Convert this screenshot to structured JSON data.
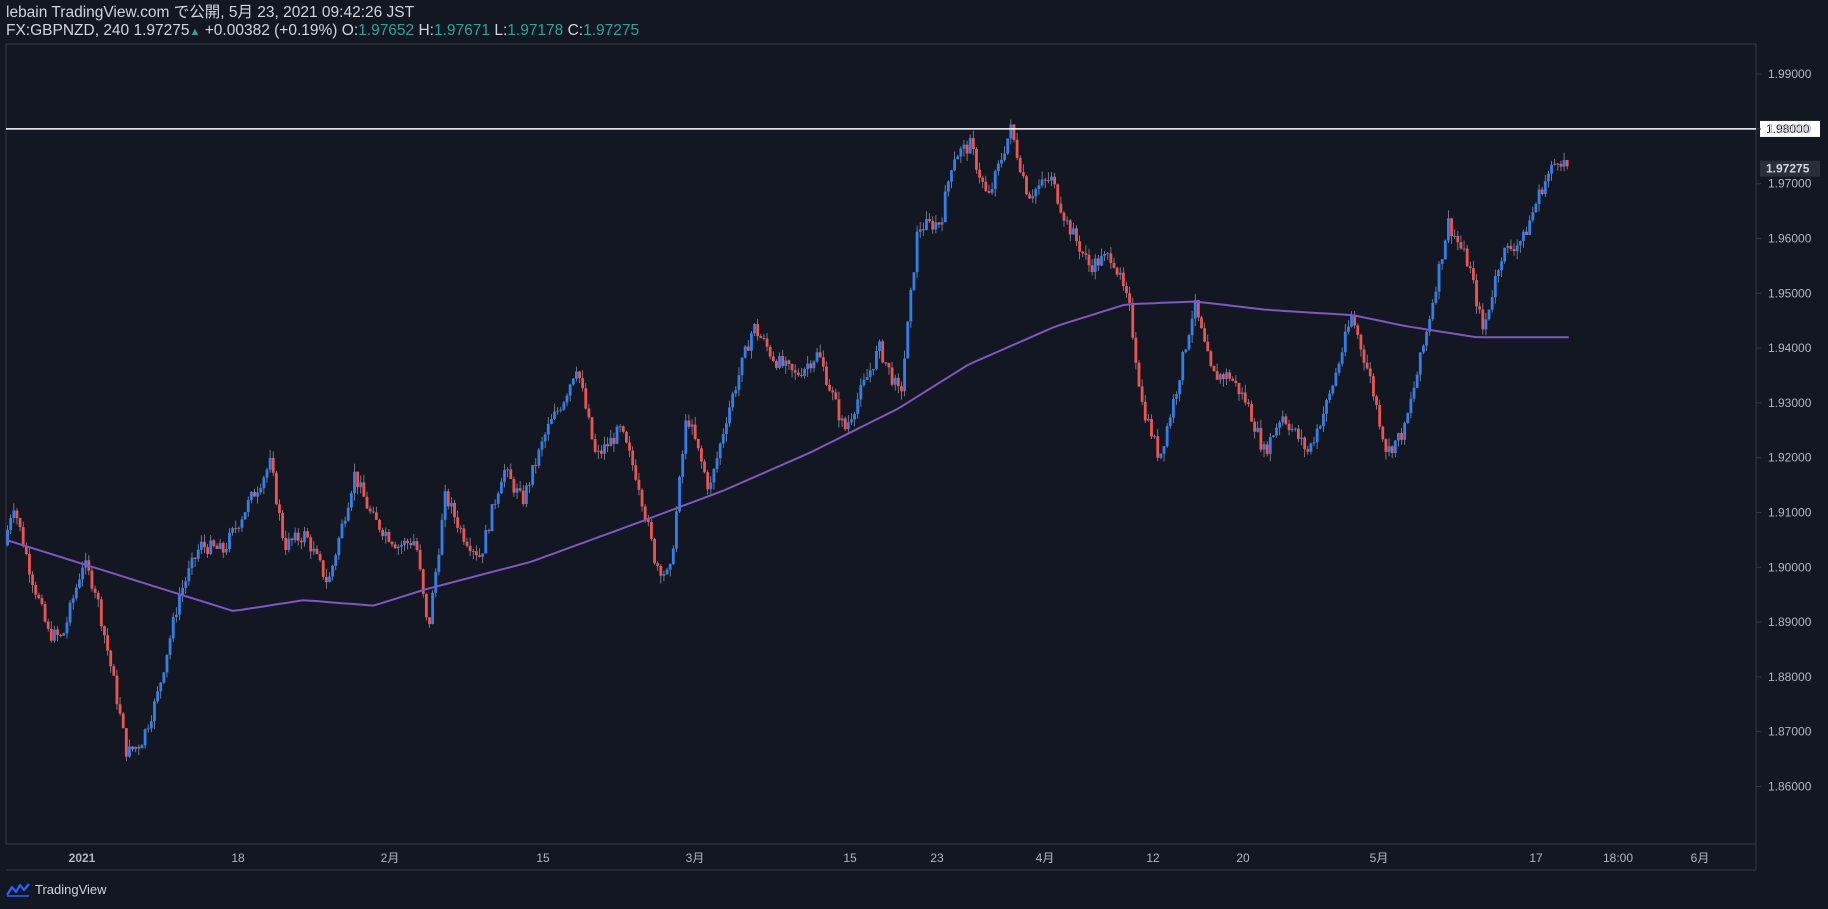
{
  "header": {
    "line1": "lebain TradingView.com で公開, 5月 23, 2021 09:42:26 JST",
    "symbol": "FX:GBPNZD, 240",
    "last": "1.97275",
    "change": "+0.00382 (+0.19%)",
    "o_label": "O:",
    "o_value": "1.97652",
    "h_label": "H:",
    "h_value": "1.97671",
    "l_label": "L:",
    "l_value": "1.97178",
    "c_label": "C:",
    "c_value": "1.97275"
  },
  "brand": {
    "name": "TradingView"
  },
  "colors": {
    "background": "#131722",
    "up": "#2f80ed",
    "down": "#ef5350",
    "ma": "#7e57c2",
    "hline": "#ffffff",
    "axis_text": "#b2b5be"
  },
  "chart_data": {
    "type": "candlestick",
    "title": "FX:GBPNZD, 240",
    "ylim": [
      1.8495,
      1.9955
    ],
    "y_ticks": [
      "1.99000",
      "1.98000",
      "1.97000",
      "1.96000",
      "1.95000",
      "1.94000",
      "1.93000",
      "1.92000",
      "1.91000",
      "1.90000",
      "1.89000",
      "1.88000",
      "1.87000",
      "1.86000"
    ],
    "x_ticks": [
      "2021",
      "18",
      "2月",
      "15",
      "3月",
      "15",
      "23",
      "4月",
      "12",
      "20",
      "5月",
      "17",
      "18:00",
      "6月"
    ],
    "horizontal_line": {
      "value": 1.98,
      "label": "1.98000"
    },
    "last_price_label": {
      "value": 1.97275,
      "label": "1.97275"
    },
    "price_path": [
      [
        0,
        1.904
      ],
      [
        0.005,
        1.912
      ],
      [
        0.015,
        1.899
      ],
      [
        0.025,
        1.888
      ],
      [
        0.033,
        1.887
      ],
      [
        0.045,
        1.901
      ],
      [
        0.052,
        1.896
      ],
      [
        0.062,
        1.88
      ],
      [
        0.07,
        1.866
      ],
      [
        0.078,
        1.868
      ],
      [
        0.087,
        1.876
      ],
      [
        0.1,
        1.895
      ],
      [
        0.112,
        1.904
      ],
      [
        0.125,
        1.903
      ],
      [
        0.14,
        1.912
      ],
      [
        0.152,
        1.919
      ],
      [
        0.16,
        1.904
      ],
      [
        0.172,
        1.906
      ],
      [
        0.185,
        1.897
      ],
      [
        0.2,
        1.917
      ],
      [
        0.21,
        1.909
      ],
      [
        0.225,
        1.904
      ],
      [
        0.235,
        1.905
      ],
      [
        0.242,
        1.888
      ],
      [
        0.252,
        1.913
      ],
      [
        0.262,
        1.906
      ],
      [
        0.272,
        1.902
      ],
      [
        0.285,
        1.918
      ],
      [
        0.296,
        1.912
      ],
      [
        0.31,
        1.925
      ],
      [
        0.32,
        1.931
      ],
      [
        0.327,
        1.937
      ],
      [
        0.338,
        1.92
      ],
      [
        0.352,
        1.925
      ],
      [
        0.362,
        1.916
      ],
      [
        0.372,
        1.901
      ],
      [
        0.38,
        1.898
      ],
      [
        0.39,
        1.928
      ],
      [
        0.403,
        1.914
      ],
      [
        0.413,
        1.928
      ],
      [
        0.428,
        1.944
      ],
      [
        0.44,
        1.938
      ],
      [
        0.452,
        1.935
      ],
      [
        0.465,
        1.939
      ],
      [
        0.48,
        1.925
      ],
      [
        0.492,
        1.934
      ],
      [
        0.5,
        1.94
      ],
      [
        0.512,
        1.931
      ],
      [
        0.522,
        1.962
      ],
      [
        0.535,
        1.963
      ],
      [
        0.542,
        1.975
      ],
      [
        0.552,
        1.977
      ],
      [
        0.562,
        1.967
      ],
      [
        0.575,
        1.98
      ],
      [
        0.585,
        1.968
      ],
      [
        0.598,
        1.971
      ],
      [
        0.607,
        1.963
      ],
      [
        0.62,
        1.955
      ],
      [
        0.633,
        1.957
      ],
      [
        0.643,
        1.947
      ],
      [
        0.65,
        1.93
      ],
      [
        0.66,
        1.92
      ],
      [
        0.67,
        1.933
      ],
      [
        0.68,
        1.948
      ],
      [
        0.69,
        1.935
      ],
      [
        0.7,
        1.935
      ],
      [
        0.71,
        1.93
      ],
      [
        0.72,
        1.921
      ],
      [
        0.73,
        1.928
      ],
      [
        0.745,
        1.921
      ],
      [
        0.757,
        1.931
      ],
      [
        0.77,
        1.946
      ],
      [
        0.78,
        1.935
      ],
      [
        0.79,
        1.921
      ],
      [
        0.8,
        1.925
      ],
      [
        0.812,
        1.942
      ],
      [
        0.825,
        1.963
      ],
      [
        0.837,
        1.955
      ],
      [
        0.845,
        1.943
      ],
      [
        0.855,
        1.957
      ],
      [
        0.868,
        1.96
      ],
      [
        0.878,
        1.969
      ],
      [
        0.888,
        1.975
      ],
      [
        0.893,
        1.973
      ]
    ],
    "ma_path": [
      [
        0,
        1.905
      ],
      [
        0.05,
        1.9
      ],
      [
        0.1,
        1.895
      ],
      [
        0.13,
        1.892
      ],
      [
        0.17,
        1.894
      ],
      [
        0.21,
        1.893
      ],
      [
        0.24,
        1.896
      ],
      [
        0.3,
        1.901
      ],
      [
        0.36,
        1.908
      ],
      [
        0.41,
        1.914
      ],
      [
        0.46,
        1.921
      ],
      [
        0.51,
        1.929
      ],
      [
        0.55,
        1.937
      ],
      [
        0.6,
        1.944
      ],
      [
        0.64,
        1.948
      ],
      [
        0.68,
        1.9485
      ],
      [
        0.72,
        1.947
      ],
      [
        0.77,
        1.946
      ],
      [
        0.8,
        1.944
      ],
      [
        0.84,
        1.942
      ],
      [
        0.893,
        1.942
      ]
    ]
  }
}
